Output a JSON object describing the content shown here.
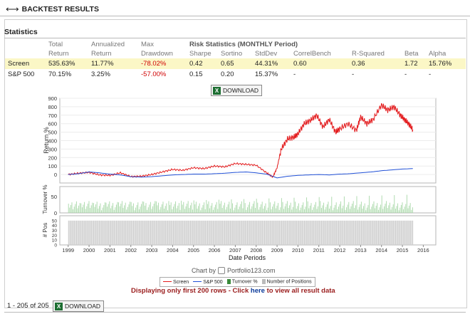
{
  "header": {
    "title": "BACKTEST RESULTS"
  },
  "stats": {
    "title": "Statistics",
    "headers": {
      "total": [
        "Total",
        "Return"
      ],
      "annualized": [
        "Annualized",
        "Return"
      ],
      "maxdd": [
        "Max",
        "Drawdown"
      ],
      "risk_title": "Risk Statistics (MONTHLY Period)",
      "cols": [
        "Sharpe",
        "Sortino",
        "StdDev",
        "CorrelBench",
        "R-Squared",
        "Beta",
        "Alpha"
      ]
    },
    "rows": [
      {
        "name": "Screen",
        "total": "535.63%",
        "annualized": "11.77%",
        "maxdd": "-78.02%",
        "sharpe": "0.42",
        "sortino": "0.65",
        "stddev": "44.31%",
        "correl": "0.60",
        "rsq": "0.36",
        "beta": "1.72",
        "alpha": "15.76%"
      },
      {
        "name": "S&P 500",
        "total": "70.15%",
        "annualized": "3.25%",
        "maxdd": "-57.00%",
        "sharpe": "0.15",
        "sortino": "0.20",
        "stddev": "15.37%",
        "correl": "-",
        "rsq": "-",
        "beta": "-",
        "alpha": "-"
      }
    ]
  },
  "download_label": "DOWNLOAD",
  "chart_data": {
    "type": "line",
    "xlabel": "Date Periods",
    "ylabel": "Return %",
    "ylim": [
      -100,
      900
    ],
    "yticks": [
      0,
      100,
      200,
      300,
      400,
      500,
      600,
      700,
      800,
      900
    ],
    "x_ticks": [
      "1999",
      "2000",
      "2001",
      "2002",
      "2003",
      "2004",
      "2005",
      "2006",
      "2007",
      "2008",
      "2009",
      "2010",
      "2011",
      "2012",
      "2013",
      "2014",
      "2015",
      "2016"
    ],
    "series": [
      {
        "name": "Screen",
        "color": "#e31a1c",
        "x": [
          1999.0,
          1999.5,
          2000.0,
          2000.5,
          2001.0,
          2001.5,
          2002.0,
          2002.5,
          2003.0,
          2003.5,
          2004.0,
          2004.5,
          2005.0,
          2005.5,
          2006.0,
          2006.5,
          2007.0,
          2007.5,
          2008.0,
          2008.5,
          2008.8,
          2009.0,
          2009.2,
          2009.5,
          2009.8,
          2010.0,
          2010.3,
          2010.6,
          2010.9,
          2011.2,
          2011.5,
          2011.8,
          2012.0,
          2012.4,
          2012.8,
          2013.0,
          2013.3,
          2013.6,
          2014.0,
          2014.3,
          2014.6,
          2014.9,
          2015.1,
          2015.3,
          2015.5
        ],
        "values": [
          0,
          15,
          25,
          -5,
          -10,
          20,
          -25,
          -20,
          0,
          30,
          60,
          50,
          80,
          70,
          100,
          90,
          130,
          120,
          110,
          20,
          -30,
          80,
          300,
          420,
          440,
          480,
          600,
          640,
          700,
          560,
          650,
          500,
          540,
          600,
          520,
          680,
          600,
          650,
          820,
          760,
          800,
          700,
          650,
          600,
          530
        ]
      },
      {
        "name": "S&P 500",
        "color": "#1f4fd6",
        "x": [
          1999.0,
          1999.5,
          2000.0,
          2000.5,
          2001.0,
          2001.5,
          2002.0,
          2002.5,
          2003.0,
          2003.5,
          2004.0,
          2004.5,
          2005.0,
          2005.5,
          2006.0,
          2006.5,
          2007.0,
          2007.5,
          2008.0,
          2008.5,
          2009.0,
          2009.5,
          2010.0,
          2010.5,
          2011.0,
          2011.5,
          2012.0,
          2012.5,
          2013.0,
          2013.5,
          2014.0,
          2014.5,
          2015.0,
          2015.5
        ],
        "values": [
          0,
          10,
          30,
          20,
          5,
          -5,
          -25,
          -30,
          -25,
          -15,
          -5,
          0,
          5,
          5,
          10,
          15,
          25,
          30,
          20,
          5,
          -40,
          -20,
          -10,
          -5,
          0,
          -5,
          5,
          10,
          20,
          30,
          45,
          55,
          65,
          70
        ]
      }
    ],
    "turnover": {
      "ylabel": "Turnover %",
      "yticks": [
        0,
        50
      ],
      "color": "#a8d8a8"
    },
    "positions": {
      "ylabel": "# Pos",
      "yticks": [
        0,
        10,
        20,
        30,
        40,
        50
      ],
      "color": "#cfcfcf"
    },
    "legend": [
      "Screen",
      "S&P 500",
      "Turnover %",
      "Number of Positions"
    ]
  },
  "footer": {
    "chart_by": "Chart by",
    "brand": "Portfolio123.com",
    "notice_pre": "Displaying only first 200 rows - Click ",
    "notice_link": "here",
    "notice_post": " to view all result data",
    "count": "1 - 205 of 205"
  }
}
